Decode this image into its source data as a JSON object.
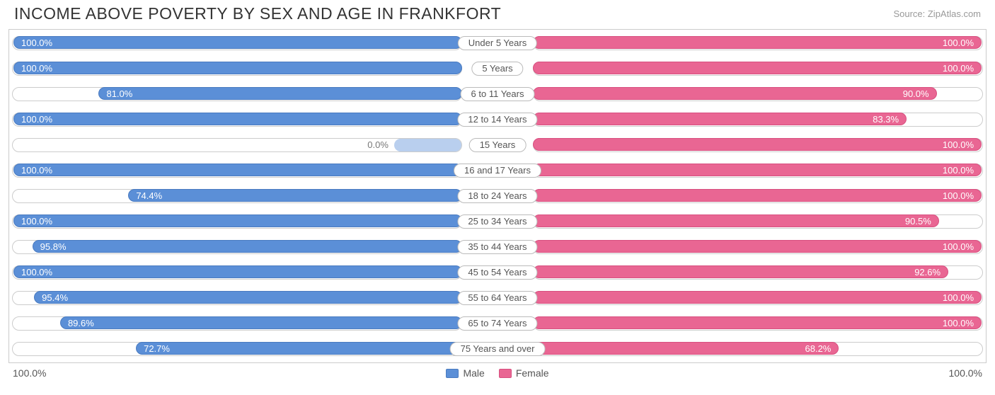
{
  "title": "INCOME ABOVE POVERTY BY SEX AND AGE IN FRANKFORT",
  "source": "Source: ZipAtlas.com",
  "axis": {
    "left_label": "100.0%",
    "right_label": "100.0%"
  },
  "colors": {
    "male_fill": "#5b8fd7",
    "male_border": "#4a7bc0",
    "female_fill": "#e96693",
    "female_border": "#d85080",
    "track_border": "#cccccc",
    "track_bg": "#ffffff",
    "value_text": "#ffffff",
    "value_text_outside": "#777"
  },
  "legend": [
    {
      "label": "Male",
      "fill": "#5b8fd7",
      "border": "#4a7bc0"
    },
    {
      "label": "Female",
      "fill": "#e96693",
      "border": "#d85080"
    }
  ],
  "rows": [
    {
      "age": "Under 5 Years",
      "male": 100.0,
      "male_label": "100.0%",
      "female": 100.0,
      "female_label": "100.0%"
    },
    {
      "age": "5 Years",
      "male": 100.0,
      "male_label": "100.0%",
      "female": 100.0,
      "female_label": "100.0%"
    },
    {
      "age": "6 to 11 Years",
      "male": 81.0,
      "male_label": "81.0%",
      "female": 90.0,
      "female_label": "90.0%"
    },
    {
      "age": "12 to 14 Years",
      "male": 100.0,
      "male_label": "100.0%",
      "female": 83.3,
      "female_label": "83.3%"
    },
    {
      "age": "15 Years",
      "male": 0.0,
      "male_label": "0.0%",
      "male_outside": true,
      "male_ghost": 15,
      "female": 100.0,
      "female_label": "100.0%"
    },
    {
      "age": "16 and 17 Years",
      "male": 100.0,
      "male_label": "100.0%",
      "female": 100.0,
      "female_label": "100.0%"
    },
    {
      "age": "18 to 24 Years",
      "male": 74.4,
      "male_label": "74.4%",
      "female": 100.0,
      "female_label": "100.0%"
    },
    {
      "age": "25 to 34 Years",
      "male": 100.0,
      "male_label": "100.0%",
      "female": 90.5,
      "female_label": "90.5%"
    },
    {
      "age": "35 to 44 Years",
      "male": 95.8,
      "male_label": "95.8%",
      "female": 100.0,
      "female_label": "100.0%"
    },
    {
      "age": "45 to 54 Years",
      "male": 100.0,
      "male_label": "100.0%",
      "female": 92.6,
      "female_label": "92.6%"
    },
    {
      "age": "55 to 64 Years",
      "male": 95.4,
      "male_label": "95.4%",
      "female": 100.0,
      "female_label": "100.0%"
    },
    {
      "age": "65 to 74 Years",
      "male": 89.6,
      "male_label": "89.6%",
      "female": 100.0,
      "female_label": "100.0%"
    },
    {
      "age": "75 Years and over",
      "male": 72.7,
      "male_label": "72.7%",
      "female": 68.2,
      "female_label": "68.2%"
    }
  ]
}
